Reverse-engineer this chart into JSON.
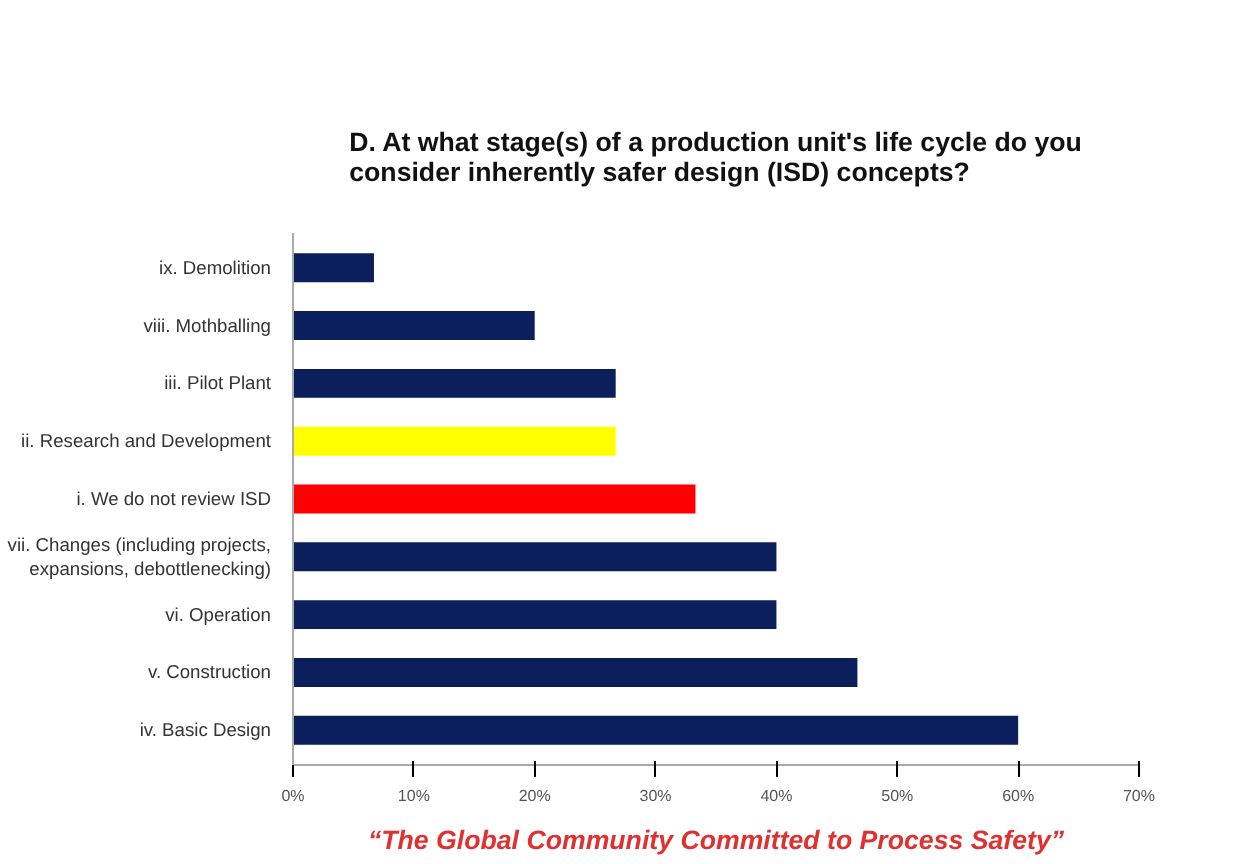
{
  "chart_data": {
    "type": "bar",
    "orientation": "horizontal",
    "title": "D. At what stage(s) of a production unit's life cycle do you consider inherently safer design (ISD) concepts?",
    "categories": [
      "ix. Demolition",
      "viii. Mothballing",
      "iii. Pilot Plant",
      "ii. Research and Development",
      "i. We do not review ISD",
      "vii. Changes (including projects, expansions, debottlenecking)",
      "vi. Operation",
      "v. Construction",
      "iv. Basic Design"
    ],
    "values": [
      6.7,
      20,
      26.7,
      26.7,
      33.3,
      40,
      40,
      46.7,
      60
    ],
    "colors": [
      "#0a1f5c",
      "#0a1f5c",
      "#0a1f5c",
      "#ffff00",
      "#ff0000",
      "#0a1f5c",
      "#0a1f5c",
      "#0a1f5c",
      "#0a1f5c"
    ],
    "xlim": [
      0,
      70
    ],
    "xticks": [
      {
        "value": 0,
        "label": "0%"
      },
      {
        "value": 10,
        "label": "10%"
      },
      {
        "value": 20,
        "label": "20%"
      },
      {
        "value": 30,
        "label": "30%"
      },
      {
        "value": 40,
        "label": "40%"
      },
      {
        "value": 50,
        "label": "50%"
      },
      {
        "value": 60,
        "label": "60%"
      },
      {
        "value": 70,
        "label": "70%"
      }
    ],
    "grid": false,
    "annotations": [
      "“The Global Community Committed to Process Safety”"
    ]
  }
}
